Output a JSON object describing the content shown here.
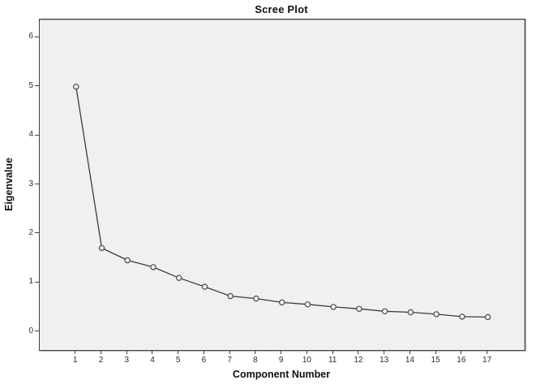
{
  "chart_data": {
    "type": "line",
    "title": "Scree Plot",
    "xlabel": "Component Number",
    "ylabel": "Eigenvalue",
    "series": [
      {
        "name": "Eigenvalues",
        "x": [
          1,
          2,
          3,
          4,
          5,
          6,
          7,
          8,
          9,
          10,
          11,
          12,
          13,
          14,
          15,
          16,
          17
        ],
        "values": [
          5.0,
          1.71,
          1.46,
          1.32,
          1.1,
          0.92,
          0.73,
          0.68,
          0.6,
          0.56,
          0.51,
          0.47,
          0.42,
          0.4,
          0.36,
          0.31,
          0.3
        ]
      }
    ],
    "x_ticks": [
      1,
      2,
      3,
      4,
      5,
      6,
      7,
      8,
      9,
      10,
      11,
      12,
      13,
      14,
      15,
      16,
      17
    ],
    "y_ticks": [
      0,
      1,
      2,
      3,
      4,
      5,
      6
    ],
    "xlim": [
      -0.41,
      18.43
    ],
    "ylim": [
      -0.37,
      6.37
    ],
    "grid": false,
    "legend": "none",
    "marker": "open-circle",
    "colors": {
      "line": "#3c3c3c",
      "marker_stroke": "#4a4a4a",
      "marker_fill": "#f0f0f0",
      "plot_background": "#f0f0f0",
      "page_background": "#ffffff",
      "frame": "#3f3f3f",
      "tick_label": "#2b2b2b"
    }
  }
}
